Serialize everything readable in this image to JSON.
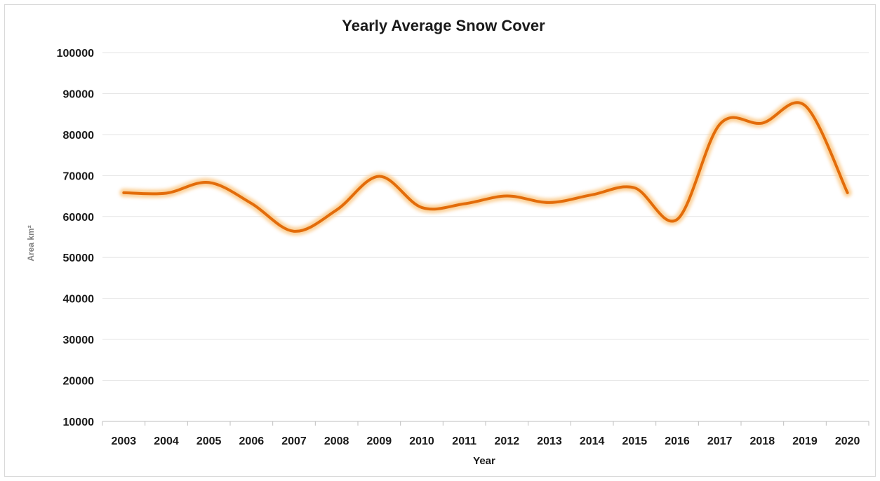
{
  "chart_data": {
    "type": "line",
    "title": "Yearly Average Snow Cover",
    "xlabel": "Year",
    "ylabel": "Area km²",
    "ylim": [
      10000,
      100000
    ],
    "yticks": [
      10000,
      20000,
      30000,
      40000,
      50000,
      60000,
      70000,
      80000,
      90000,
      100000
    ],
    "categories": [
      "2003",
      "2004",
      "2005",
      "2006",
      "2007",
      "2008",
      "2009",
      "2010",
      "2011",
      "2012",
      "2013",
      "2014",
      "2015",
      "2016",
      "2017",
      "2018",
      "2019",
      "2020"
    ],
    "series": [
      {
        "values": [
          65800,
          65700,
          68300,
          63200,
          56400,
          61600,
          69800,
          62200,
          63100,
          65000,
          63400,
          65300,
          67000,
          59300,
          82500,
          82800,
          87100,
          65800
        ]
      }
    ],
    "grid": true,
    "legend": "none",
    "line_color": "#e36c0a",
    "glow_color": "#fbcf94",
    "grid_color": "#e6e6e6",
    "axis_color": "#bfbfbf"
  }
}
